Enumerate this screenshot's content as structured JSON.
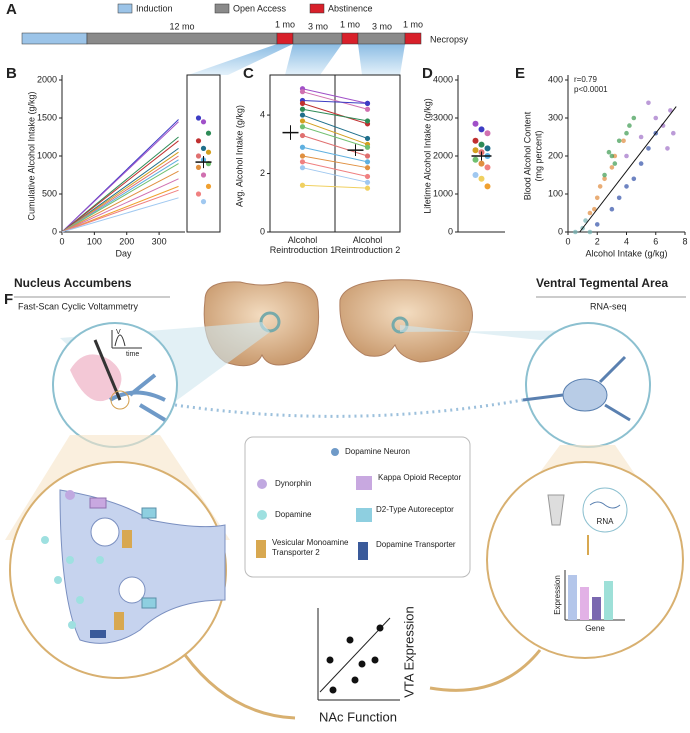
{
  "panels": [
    "A",
    "B",
    "C",
    "D",
    "E",
    "F"
  ],
  "timeline": {
    "legend": [
      "Induction",
      "Open Access",
      "Abstinence"
    ],
    "durations": [
      "12 mo",
      "1 mo",
      "3 mo",
      "1 mo",
      "3 mo",
      "1 mo"
    ],
    "end": "Necropsy"
  },
  "chart_data": [
    {
      "type": "line",
      "ylabel": "Cumulative Alcohol Intake (g/kg)",
      "xlabel": "Day",
      "x": [
        0,
        360
      ],
      "xlim": [
        0,
        380
      ],
      "xticks": [
        0,
        100,
        200,
        300
      ],
      "ylim": [
        0,
        2000
      ],
      "yticks": [
        0,
        500,
        1000,
        1500,
        2000
      ],
      "series": [
        {
          "color": "#3d3dc4",
          "values": [
            0,
            1480
          ]
        },
        {
          "color": "#a050c8",
          "values": [
            0,
            1450
          ]
        },
        {
          "color": "#2e8b57",
          "values": [
            0,
            1250
          ]
        },
        {
          "color": "#c03030",
          "values": [
            0,
            1200
          ]
        },
        {
          "color": "#1f6f8b",
          "values": [
            0,
            1100
          ]
        },
        {
          "color": "#d4a020",
          "values": [
            0,
            1050
          ]
        },
        {
          "color": "#e07070",
          "values": [
            0,
            1000
          ]
        },
        {
          "color": "#5fb0e0",
          "values": [
            0,
            950
          ]
        },
        {
          "color": "#70c070",
          "values": [
            0,
            900
          ]
        },
        {
          "color": "#e09040",
          "values": [
            0,
            800
          ]
        },
        {
          "color": "#d070b0",
          "values": [
            0,
            700
          ]
        },
        {
          "color": "#f0a030",
          "values": [
            0,
            600
          ]
        },
        {
          "color": "#f08080",
          "values": [
            0,
            550
          ]
        },
        {
          "color": "#a0c8f0",
          "values": [
            0,
            450
          ]
        }
      ],
      "strip": {
        "values": [
          1500,
          1450,
          1300,
          1200,
          1100,
          1050,
          1000,
          950,
          900,
          850,
          750,
          600,
          500,
          400
        ],
        "colors": [
          "#3d3dc4",
          "#a050c8",
          "#2e8b57",
          "#c03030",
          "#1f6f8b",
          "#d4a020",
          "#e07070",
          "#5fb0e0",
          "#70c070",
          "#e09040",
          "#d070b0",
          "#f0a030",
          "#f08080",
          "#a0c8f0"
        ],
        "mean": 920,
        "sem": 80
      }
    },
    {
      "type": "paired",
      "ylabel": "Avg. Alcohol Intake (g/kg)",
      "categories": [
        "Alcohol Reintroduction 1",
        "Alcohol Reintroduction 2"
      ],
      "ylim": [
        0,
        5.2
      ],
      "yticks": [
        0,
        2,
        4
      ],
      "series": [
        {
          "color": "#a050c8",
          "values": [
            4.9,
            4.4
          ]
        },
        {
          "color": "#d070b0",
          "values": [
            4.8,
            4.2
          ]
        },
        {
          "color": "#3d3dc4",
          "values": [
            4.5,
            4.4
          ]
        },
        {
          "color": "#c03030",
          "values": [
            4.4,
            3.7
          ]
        },
        {
          "color": "#2e8b57",
          "values": [
            4.2,
            3.8
          ]
        },
        {
          "color": "#1f6f8b",
          "values": [
            4.0,
            3.2
          ]
        },
        {
          "color": "#d4a020",
          "values": [
            3.8,
            3.0
          ]
        },
        {
          "color": "#70c070",
          "values": [
            3.6,
            2.9
          ]
        },
        {
          "color": "#e07070",
          "values": [
            3.3,
            2.6
          ]
        },
        {
          "color": "#5fb0e0",
          "values": [
            2.9,
            2.4
          ]
        },
        {
          "color": "#e09040",
          "values": [
            2.6,
            2.2
          ]
        },
        {
          "color": "#f08080",
          "values": [
            2.4,
            1.9
          ]
        },
        {
          "color": "#a0c8f0",
          "values": [
            2.2,
            1.7
          ]
        },
        {
          "color": "#f0d060",
          "values": [
            1.6,
            1.5
          ]
        }
      ],
      "mean": [
        3.4,
        2.8
      ],
      "sem": [
        0.25,
        0.2
      ]
    },
    {
      "type": "strip",
      "ylabel": "Lifetime Alcohol Intake (g/kg)",
      "ylim": [
        0,
        4000
      ],
      "yticks": [
        0,
        1000,
        2000,
        3000,
        4000
      ],
      "values": [
        2850,
        2700,
        2600,
        2400,
        2300,
        2200,
        2150,
        2100,
        2000,
        1900,
        1800,
        1700,
        1500,
        1400,
        1200
      ],
      "colors": [
        "#a050c8",
        "#3d3dc4",
        "#d070b0",
        "#c03030",
        "#2e8b57",
        "#1f6f8b",
        "#d4a020",
        "#e07070",
        "#5fb0e0",
        "#70c070",
        "#e09040",
        "#f08080",
        "#a0c8f0",
        "#f0d060",
        "#f0a030"
      ],
      "mean": 2000,
      "sem": 120
    },
    {
      "type": "scatter",
      "ylabel": [
        "Blood Alcohol Content",
        "(mg percent)"
      ],
      "xlabel": "Alcohol Intake (g/kg)",
      "annotations": [
        "r=0.79",
        "p<0.0001"
      ],
      "xlim": [
        0,
        8
      ],
      "xticks": [
        0,
        2,
        4,
        6,
        8
      ],
      "ylim": [
        0,
        400
      ],
      "yticks": [
        0,
        100,
        200,
        300,
        400
      ],
      "fit": {
        "x": [
          0.8,
          7.4
        ],
        "values": [
          0,
          330
        ]
      },
      "series": [
        {
          "color": "#e08a3c",
          "x": [
            1.5,
            2,
            2.5,
            3,
            3.2,
            3.8,
            2.2,
            1.8
          ],
          "values": [
            50,
            90,
            140,
            170,
            200,
            240,
            120,
            60
          ]
        },
        {
          "color": "#3c9a50",
          "x": [
            2.5,
            3,
            3.5,
            4,
            4.5,
            3.2,
            2.8,
            4.2
          ],
          "values": [
            150,
            200,
            240,
            260,
            300,
            180,
            210,
            280
          ]
        },
        {
          "color": "#3050a8",
          "x": [
            2,
            3,
            4,
            5,
            5.5,
            6,
            3.5,
            4.5
          ],
          "values": [
            20,
            60,
            120,
            180,
            220,
            260,
            90,
            140
          ]
        },
        {
          "color": "#a070c8",
          "x": [
            4,
            5,
            6,
            6.5,
            7,
            5.5,
            6.8,
            7.2
          ],
          "values": [
            200,
            250,
            300,
            280,
            320,
            340,
            220,
            260
          ]
        },
        {
          "color": "#70b0b0",
          "x": [
            0.5,
            1,
            1.5,
            1.2
          ],
          "values": [
            0,
            10,
            0,
            30
          ]
        }
      ]
    }
  ],
  "diagram": {
    "left_title": "Nucleus Accumbens",
    "left_method": "Fast-Scan Cyclic Voltammetry",
    "right_title": "Ventral Tegmental Area",
    "right_method": "RNA-seq",
    "trace_y": "V",
    "trace_x": "time",
    "legend": [
      "Dopamine Neuron",
      "Dynorphin",
      "Kappa Opioid Receptor",
      "Dopamine",
      "D2-Type Autoreceptor",
      "Vesicular Monoamine Transporter 2",
      "Dopamine Transporter"
    ],
    "rna": "RNA",
    "bar_y": "Expression",
    "bar_x": "Gene",
    "plot_y": "VTA Expression",
    "plot_x": "NAc Function"
  }
}
